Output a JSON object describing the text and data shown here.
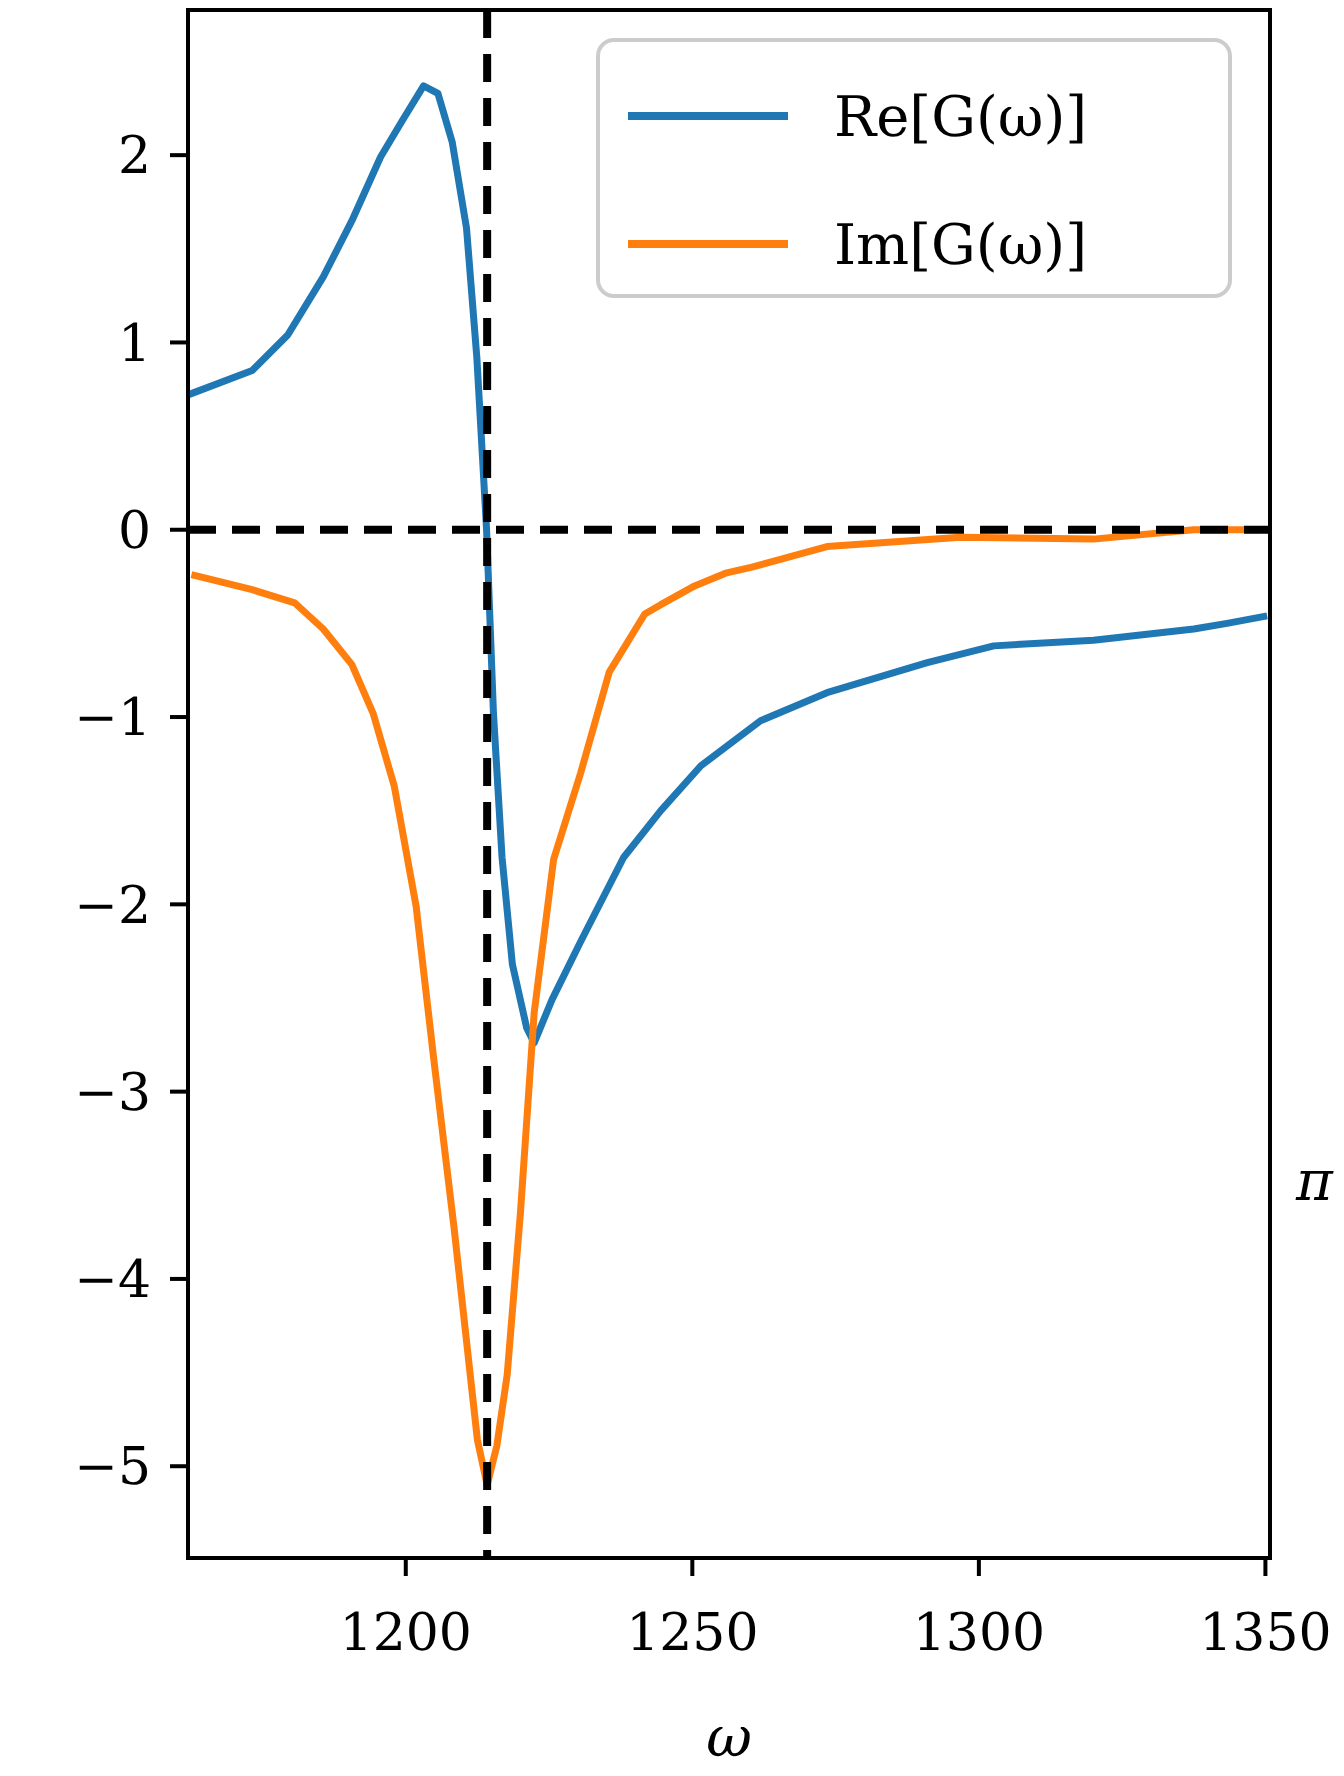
{
  "chart_data": {
    "type": "line",
    "xlabel": "ω",
    "xlim": [
      1162,
      1350.8
    ],
    "xticks": [
      1200,
      1250,
      1300,
      1350
    ],
    "ylim": [
      -5.49,
      2.775
    ],
    "yticks": [
      {
        "value": -5,
        "label": "−5"
      },
      {
        "value": -4,
        "label": "−4"
      },
      {
        "value": -3,
        "label": "−3"
      },
      {
        "value": -2,
        "label": "−2"
      },
      {
        "value": -1,
        "label": "−1"
      },
      0,
      1,
      2
    ],
    "legend": "top right",
    "grid": false,
    "line_style": "solid",
    "marker": "none",
    "series": [
      {
        "name": "Re[G(ω)]",
        "color": "#1f77b4",
        "x": [
          1162,
          1173.2,
          1179.4,
          1185.6,
          1190.6,
          1195.6,
          1199.3,
          1203.1,
          1205.6,
          1208.1,
          1210.6,
          1212.4,
          1214.1,
          1215.3,
          1216.8,
          1218.6,
          1221.1,
          1222.4,
          1225.5,
          1230.5,
          1238,
          1244.5,
          1251.5,
          1261.9,
          1273.5,
          1291,
          1302.6,
          1320,
          1337.5,
          1343.3,
          1350.3
        ],
        "values": [
          0.72,
          0.85,
          1.04,
          1.35,
          1.65,
          1.99,
          2.18,
          2.37,
          2.33,
          2.07,
          1.61,
          0.92,
          0,
          -0.98,
          -1.75,
          -2.32,
          -2.66,
          -2.74,
          -2.51,
          -2.2,
          -1.75,
          -1.5,
          -1.26,
          -1.02,
          -0.87,
          -0.71,
          -0.62,
          -0.59,
          -0.53,
          -0.5,
          -0.46
        ]
      },
      {
        "name": "Im[G(ω)]",
        "color": "#ff7f0e",
        "x": [
          1162.6,
          1173.2,
          1180.6,
          1185.6,
          1190.6,
          1194.3,
          1198,
          1201.8,
          1204.9,
          1208.4,
          1210.7,
          1212.5,
          1214.2,
          1215.9,
          1217.7,
          1220,
          1222.4,
          1225.8,
          1230.5,
          1235.5,
          1241.7,
          1244.5,
          1250.4,
          1256,
          1260.4,
          1273.5,
          1296.8,
          1320,
          1337.5,
          1349
        ],
        "values": [
          -0.24,
          -0.32,
          -0.39,
          -0.53,
          -0.72,
          -0.98,
          -1.37,
          -2.01,
          -2.83,
          -3.72,
          -4.36,
          -4.86,
          -5.1,
          -4.89,
          -4.51,
          -3.65,
          -2.58,
          -1.76,
          -1.3,
          -0.76,
          -0.45,
          -0.4,
          -0.3,
          -0.23,
          -0.2,
          -0.09,
          -0.04,
          -0.05,
          0,
          0
        ]
      }
    ],
    "ref_lines": [
      {
        "axis": "x",
        "value": 1214.2,
        "color": "#000000",
        "line_style": "dashed"
      },
      {
        "axis": "y",
        "value": 0,
        "color": "#000000",
        "line_style": "dashed"
      }
    ],
    "annotations": [
      "π"
    ]
  }
}
